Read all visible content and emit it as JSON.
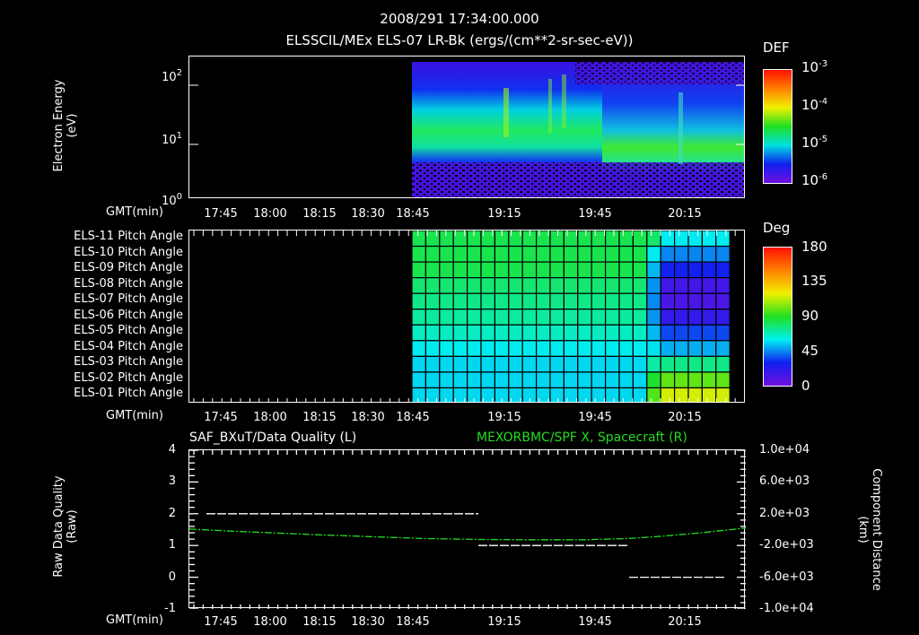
{
  "header": {
    "timestamp": "2008/291 17:34:00.000",
    "panel1_title": "ELSSCIL/MEx ELS-07 LR-Bk  (ergs/(cm**2-sr-sec-eV))"
  },
  "axis_common": {
    "xlabel": "GMT(min)",
    "xticks": [
      "17:45",
      "18:00",
      "18:15",
      "18:30",
      "18:45",
      "19:15",
      "19:45",
      "20:15"
    ],
    "xtick_pos": [
      246,
      301,
      356,
      410,
      460,
      562,
      663,
      763
    ]
  },
  "panel1": {
    "ylabel": "Electron Energy",
    "yunit": "(eV)",
    "yticks": [
      {
        "base": "10",
        "exp": "2"
      },
      {
        "base": "10",
        "exp": "1"
      },
      {
        "base": "10",
        "exp": "0"
      }
    ],
    "colorbar": {
      "label": "DEF",
      "ticks": [
        {
          "base": "10",
          "exp": "-3"
        },
        {
          "base": "10",
          "exp": "-4"
        },
        {
          "base": "10",
          "exp": "-5"
        },
        {
          "base": "10",
          "exp": "-6"
        }
      ]
    }
  },
  "panel2": {
    "row_labels": [
      "ELS-11 Pitch Angle",
      "ELS-10 Pitch Angle",
      "ELS-09 Pitch Angle",
      "ELS-08 Pitch Angle",
      "ELS-07 Pitch Angle",
      "ELS-06 Pitch Angle",
      "ELS-05 Pitch Angle",
      "ELS-04 Pitch Angle",
      "ELS-03 Pitch Angle",
      "ELS-02 Pitch Angle",
      "ELS-01 Pitch Angle"
    ],
    "colorbar": {
      "label": "Deg",
      "ticks": [
        "180",
        "135",
        "90",
        "45",
        "0"
      ]
    }
  },
  "panel3": {
    "title_left": "SAF_BXuT/Data Quality (L)",
    "title_right": "MEXORBMC/SPF X, Spacecraft (R)",
    "ylabel_left": "Raw Data Quality",
    "yunit_left": "(Raw)",
    "yticks_left": [
      "4",
      "3",
      "2",
      "1",
      "0",
      "-1"
    ],
    "ylabel_right": "Component Distance",
    "yunit_right": "(km)",
    "yticks_right": [
      "1.0e+04",
      "6.0e+03",
      "2.0e+03",
      "-2.0e+03",
      "-6.0e+03",
      "-1.0e+04"
    ],
    "colors": {
      "quality": "#ffffff",
      "spacecraft_x": "#22dd22"
    }
  },
  "chart_data": [
    {
      "type": "heatmap",
      "title": "ELSSCIL/MEx ELS-07 LR-Bk  (ergs/(cm**2-sr-sec-eV))",
      "subtitle": "2008/291 17:34:00.000",
      "xlabel": "GMT(min)",
      "ylabel": "Electron Energy (eV)",
      "yscale": "log",
      "ylim": [
        1,
        200
      ],
      "x_ticks": [
        "17:45",
        "18:00",
        "18:15",
        "18:30",
        "18:45",
        "19:15",
        "19:45",
        "20:15"
      ],
      "data_start": "~18:47",
      "colorbar": {
        "label": "DEF",
        "scale": "log",
        "range": [
          1e-06,
          0.001
        ]
      },
      "notes": "Green band (~1e-4) centered near 5-30 eV from 18:47 to ~19:55; lower-energy band ~5-10 eV after 20:05; sparse purple noise elsewhere"
    },
    {
      "type": "heatmap",
      "xlabel": "GMT(min)",
      "rows": [
        "ELS-11",
        "ELS-10",
        "ELS-09",
        "ELS-08",
        "ELS-07",
        "ELS-06",
        "ELS-05",
        "ELS-04",
        "ELS-03",
        "ELS-02",
        "ELS-01"
      ],
      "colorbar": {
        "label": "Deg",
        "range": [
          0,
          180
        ]
      },
      "values_deg_approx": {
        "before_20_00": [
          95,
          95,
          95,
          92,
          90,
          88,
          85,
          80,
          75,
          75,
          75
        ],
        "after_20_05": [
          80,
          55,
          30,
          15,
          12,
          20,
          40,
          65,
          90,
          110,
          130
        ]
      }
    },
    {
      "type": "line",
      "xlabel": "GMT(min)",
      "series": [
        {
          "name": "SAF_BXuT/Data Quality (L)",
          "axis": "left",
          "x": [
            "17:40",
            "19:10",
            "19:11",
            "19:55",
            "19:56",
            "20:25"
          ],
          "values": [
            2,
            2,
            1,
            1,
            0,
            0
          ]
        },
        {
          "name": "MEXORBMC/SPF X, Spacecraft (R)",
          "axis": "right",
          "x": [
            "17:35",
            "18:00",
            "18:30",
            "19:00",
            "19:30",
            "19:50",
            "20:10",
            "20:30"
          ],
          "values": [
            200,
            -200,
            -700,
            -1200,
            -1500,
            -1400,
            -700,
            800
          ]
        }
      ],
      "ylim_left": [
        -1,
        4
      ],
      "ylim_right": [
        -10000,
        10000
      ]
    }
  ]
}
